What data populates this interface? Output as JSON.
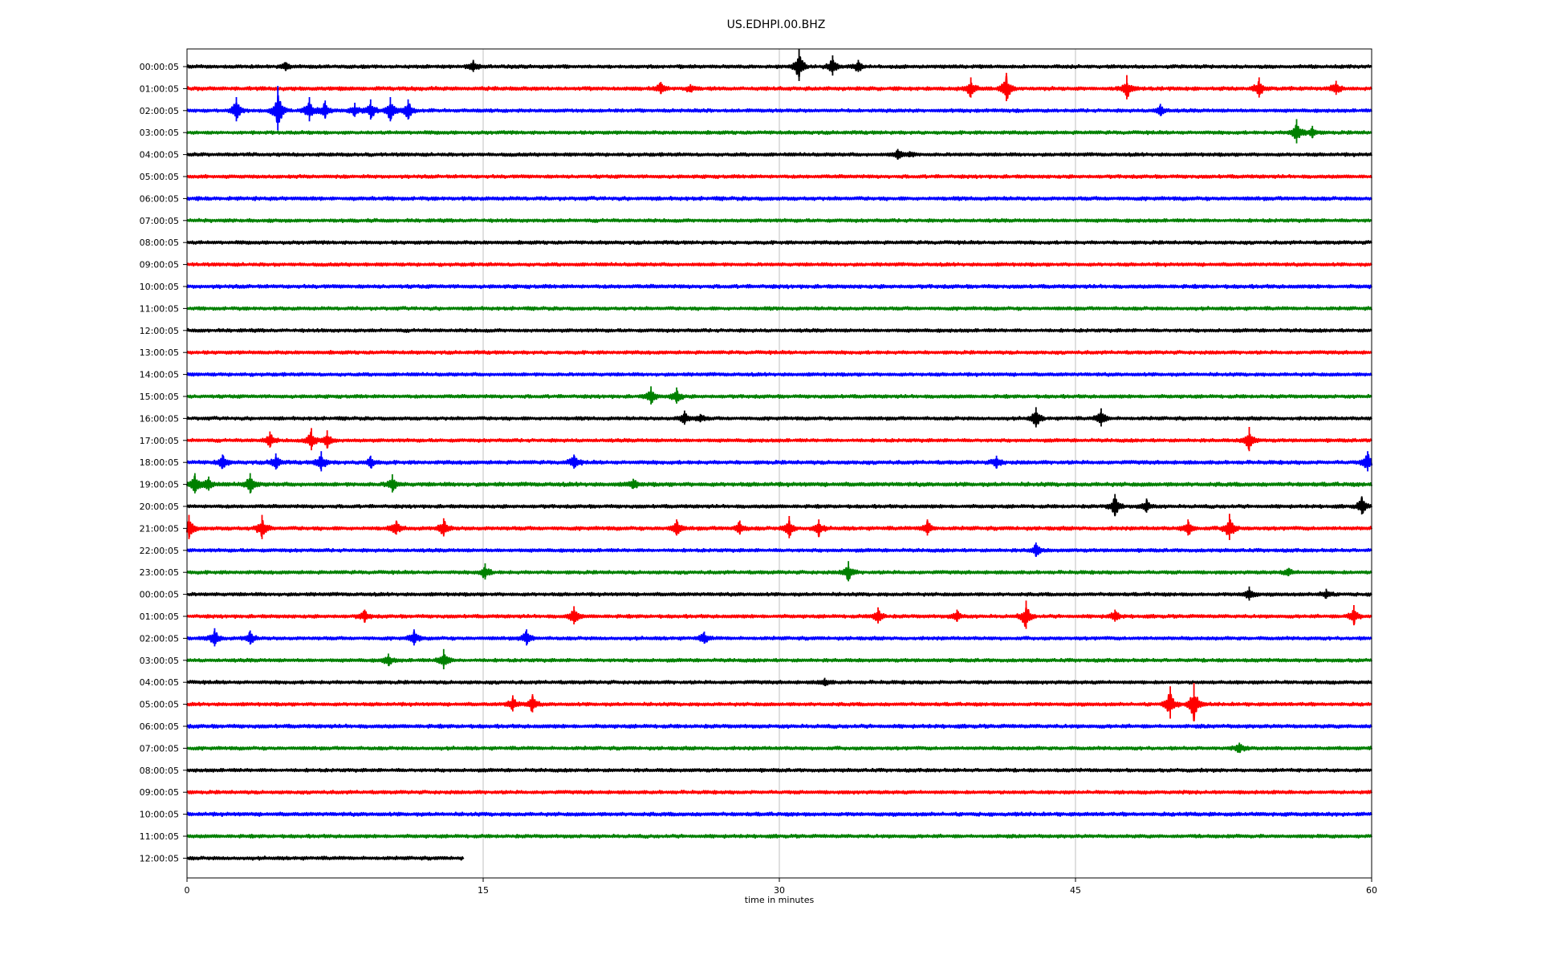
{
  "chart_data": {
    "type": "line",
    "title": "US.EDHPI.00.BHZ",
    "xlabel": "time in minutes",
    "ylabel": "",
    "xlim": [
      0,
      60
    ],
    "x_ticks": [
      "0",
      "15",
      "30",
      "45",
      "60"
    ],
    "x_tick_values": [
      0,
      15,
      30,
      45,
      60
    ],
    "grid_vertical": true,
    "color_cycle": [
      "#000000",
      "#ff0000",
      "#0000ff",
      "#008000"
    ],
    "rows": [
      {
        "label": "00:00:05",
        "color": "#000000",
        "end_minute": 60,
        "noise": 1.0,
        "events": [
          {
            "t": 5,
            "a": 4
          },
          {
            "t": 14.5,
            "a": 6
          },
          {
            "t": 31,
            "a": 16
          },
          {
            "t": 32.7,
            "a": 10
          },
          {
            "t": 34,
            "a": 6
          }
        ]
      },
      {
        "label": "01:00:05",
        "color": "#ff0000",
        "end_minute": 60,
        "noise": 1.1,
        "events": [
          {
            "t": 24,
            "a": 6
          },
          {
            "t": 25.5,
            "a": 4
          },
          {
            "t": 39.7,
            "a": 10
          },
          {
            "t": 41.5,
            "a": 14
          },
          {
            "t": 47.6,
            "a": 12
          },
          {
            "t": 54.3,
            "a": 10
          },
          {
            "t": 58.2,
            "a": 7
          }
        ]
      },
      {
        "label": "02:00:05",
        "color": "#0000ff",
        "end_minute": 60,
        "noise": 1.0,
        "events": [
          {
            "t": 2.5,
            "a": 12
          },
          {
            "t": 4.6,
            "a": 22
          },
          {
            "t": 6.2,
            "a": 12
          },
          {
            "t": 7,
            "a": 9
          },
          {
            "t": 8.5,
            "a": 7
          },
          {
            "t": 9.3,
            "a": 10
          },
          {
            "t": 10.3,
            "a": 12
          },
          {
            "t": 11.2,
            "a": 10
          },
          {
            "t": 49.3,
            "a": 6
          }
        ]
      },
      {
        "label": "03:00:05",
        "color": "#008000",
        "end_minute": 60,
        "noise": 1.0,
        "events": [
          {
            "t": 56.2,
            "a": 12
          },
          {
            "t": 57,
            "a": 6
          }
        ]
      },
      {
        "label": "04:00:05",
        "color": "#000000",
        "end_minute": 60,
        "noise": 1.0,
        "events": [
          {
            "t": 36,
            "a": 5
          },
          {
            "t": 36.6,
            "a": 3
          }
        ]
      },
      {
        "label": "05:00:05",
        "color": "#ff0000",
        "end_minute": 60,
        "noise": 1.0,
        "events": []
      },
      {
        "label": "06:00:05",
        "color": "#0000ff",
        "end_minute": 60,
        "noise": 1.1,
        "events": []
      },
      {
        "label": "07:00:05",
        "color": "#008000",
        "end_minute": 60,
        "noise": 1.0,
        "events": []
      },
      {
        "label": "08:00:05",
        "color": "#000000",
        "end_minute": 60,
        "noise": 1.0,
        "events": []
      },
      {
        "label": "09:00:05",
        "color": "#ff0000",
        "end_minute": 60,
        "noise": 1.0,
        "events": []
      },
      {
        "label": "10:00:05",
        "color": "#0000ff",
        "end_minute": 60,
        "noise": 1.1,
        "events": []
      },
      {
        "label": "11:00:05",
        "color": "#008000",
        "end_minute": 60,
        "noise": 1.0,
        "events": []
      },
      {
        "label": "12:00:05",
        "color": "#000000",
        "end_minute": 60,
        "noise": 1.0,
        "events": []
      },
      {
        "label": "13:00:05",
        "color": "#ff0000",
        "end_minute": 60,
        "noise": 1.0,
        "events": []
      },
      {
        "label": "14:00:05",
        "color": "#0000ff",
        "end_minute": 60,
        "noise": 1.0,
        "events": []
      },
      {
        "label": "15:00:05",
        "color": "#008000",
        "end_minute": 60,
        "noise": 1.0,
        "events": [
          {
            "t": 23.5,
            "a": 9
          },
          {
            "t": 24.8,
            "a": 8
          }
        ]
      },
      {
        "label": "16:00:05",
        "color": "#000000",
        "end_minute": 60,
        "noise": 1.0,
        "events": [
          {
            "t": 25.2,
            "a": 7
          },
          {
            "t": 26,
            "a": 4
          },
          {
            "t": 43,
            "a": 10
          },
          {
            "t": 46.3,
            "a": 9
          }
        ]
      },
      {
        "label": "17:00:05",
        "color": "#ff0000",
        "end_minute": 60,
        "noise": 1.0,
        "events": [
          {
            "t": 4.2,
            "a": 8
          },
          {
            "t": 6.3,
            "a": 11
          },
          {
            "t": 7.1,
            "a": 9
          },
          {
            "t": 53.8,
            "a": 12
          }
        ]
      },
      {
        "label": "18:00:05",
        "color": "#0000ff",
        "end_minute": 60,
        "noise": 1.1,
        "events": [
          {
            "t": 1.8,
            "a": 7
          },
          {
            "t": 4.5,
            "a": 8
          },
          {
            "t": 6.8,
            "a": 10
          },
          {
            "t": 9.3,
            "a": 6
          },
          {
            "t": 19.6,
            "a": 7
          },
          {
            "t": 41,
            "a": 6
          },
          {
            "t": 59.8,
            "a": 10
          }
        ]
      },
      {
        "label": "19:00:05",
        "color": "#008000",
        "end_minute": 60,
        "noise": 1.2,
        "events": [
          {
            "t": 0.4,
            "a": 10
          },
          {
            "t": 1.1,
            "a": 7
          },
          {
            "t": 3.2,
            "a": 10
          },
          {
            "t": 10.4,
            "a": 9
          },
          {
            "t": 22.6,
            "a": 5
          }
        ]
      },
      {
        "label": "20:00:05",
        "color": "#000000",
        "end_minute": 60,
        "noise": 1.0,
        "events": [
          {
            "t": 47,
            "a": 11
          },
          {
            "t": 48.6,
            "a": 7
          },
          {
            "t": 59.5,
            "a": 9
          }
        ]
      },
      {
        "label": "21:00:05",
        "color": "#ff0000",
        "end_minute": 60,
        "noise": 1.1,
        "events": [
          {
            "t": 0.1,
            "a": 12
          },
          {
            "t": 3.8,
            "a": 12
          },
          {
            "t": 10.6,
            "a": 7
          },
          {
            "t": 13,
            "a": 9
          },
          {
            "t": 24.8,
            "a": 8
          },
          {
            "t": 28,
            "a": 7
          },
          {
            "t": 30.5,
            "a": 11
          },
          {
            "t": 32,
            "a": 8
          },
          {
            "t": 37.5,
            "a": 8
          },
          {
            "t": 50.7,
            "a": 8
          },
          {
            "t": 52.8,
            "a": 13
          }
        ]
      },
      {
        "label": "22:00:05",
        "color": "#0000ff",
        "end_minute": 60,
        "noise": 1.0,
        "events": [
          {
            "t": 43,
            "a": 7
          }
        ]
      },
      {
        "label": "23:00:05",
        "color": "#008000",
        "end_minute": 60,
        "noise": 1.0,
        "events": [
          {
            "t": 15.1,
            "a": 8
          },
          {
            "t": 33.5,
            "a": 10
          },
          {
            "t": 55.8,
            "a": 4
          }
        ]
      },
      {
        "label": "00:00:05",
        "color": "#000000",
        "end_minute": 60,
        "noise": 1.0,
        "events": [
          {
            "t": 53.8,
            "a": 7
          },
          {
            "t": 57.7,
            "a": 5
          }
        ]
      },
      {
        "label": "01:00:05",
        "color": "#ff0000",
        "end_minute": 60,
        "noise": 1.0,
        "events": [
          {
            "t": 9,
            "a": 6
          },
          {
            "t": 19.6,
            "a": 9
          },
          {
            "t": 35,
            "a": 8
          },
          {
            "t": 39,
            "a": 6
          },
          {
            "t": 42.5,
            "a": 14
          },
          {
            "t": 47,
            "a": 6
          },
          {
            "t": 59.1,
            "a": 10
          }
        ]
      },
      {
        "label": "02:00:05",
        "color": "#0000ff",
        "end_minute": 60,
        "noise": 1.0,
        "events": [
          {
            "t": 1.4,
            "a": 9
          },
          {
            "t": 3.2,
            "a": 7
          },
          {
            "t": 11.5,
            "a": 8
          },
          {
            "t": 17.2,
            "a": 8
          },
          {
            "t": 26.2,
            "a": 6
          }
        ]
      },
      {
        "label": "03:00:05",
        "color": "#008000",
        "end_minute": 60,
        "noise": 1.0,
        "events": [
          {
            "t": 10.2,
            "a": 6
          },
          {
            "t": 13,
            "a": 10
          }
        ]
      },
      {
        "label": "04:00:05",
        "color": "#000000",
        "end_minute": 60,
        "noise": 1.0,
        "events": [
          {
            "t": 32.3,
            "a": 4
          }
        ]
      },
      {
        "label": "05:00:05",
        "color": "#ff0000",
        "end_minute": 60,
        "noise": 1.0,
        "events": [
          {
            "t": 16.5,
            "a": 8
          },
          {
            "t": 17.5,
            "a": 9
          },
          {
            "t": 49.8,
            "a": 16
          },
          {
            "t": 51,
            "a": 19
          }
        ]
      },
      {
        "label": "06:00:05",
        "color": "#0000ff",
        "end_minute": 60,
        "noise": 1.1,
        "events": []
      },
      {
        "label": "07:00:05",
        "color": "#008000",
        "end_minute": 60,
        "noise": 1.0,
        "events": [
          {
            "t": 53.3,
            "a": 5
          }
        ]
      },
      {
        "label": "08:00:05",
        "color": "#000000",
        "end_minute": 60,
        "noise": 1.0,
        "events": []
      },
      {
        "label": "09:00:05",
        "color": "#ff0000",
        "end_minute": 60,
        "noise": 1.0,
        "events": []
      },
      {
        "label": "10:00:05",
        "color": "#0000ff",
        "end_minute": 60,
        "noise": 1.1,
        "events": []
      },
      {
        "label": "11:00:05",
        "color": "#008000",
        "end_minute": 60,
        "noise": 1.0,
        "events": []
      },
      {
        "label": "12:00:05",
        "color": "#000000",
        "end_minute": 14,
        "noise": 1.0,
        "events": []
      }
    ]
  }
}
